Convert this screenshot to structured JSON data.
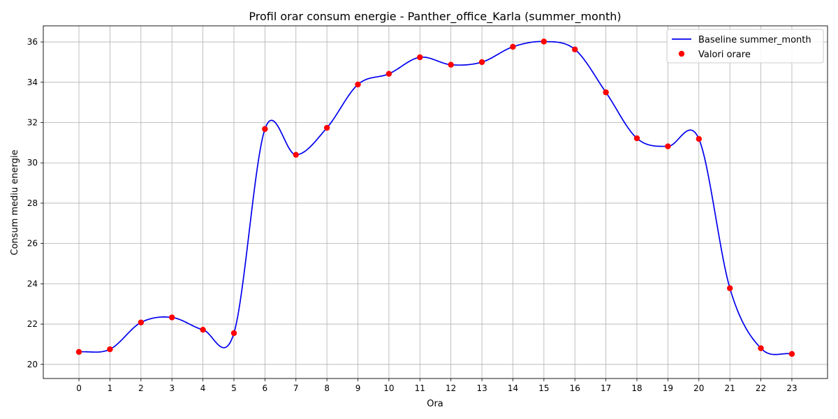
{
  "chart_data": {
    "type": "line",
    "title": "Profil orar consum energie - Panther_office_Karla (summer_month)",
    "xlabel": "Ora",
    "ylabel": "Consum mediu energie",
    "x": [
      0,
      1,
      2,
      3,
      4,
      5,
      6,
      7,
      8,
      9,
      10,
      11,
      12,
      13,
      14,
      15,
      16,
      17,
      18,
      19,
      20,
      21,
      22,
      23
    ],
    "x_ticks": [
      "0",
      "1",
      "2",
      "3",
      "4",
      "5",
      "6",
      "7",
      "8",
      "9",
      "10",
      "11",
      "12",
      "13",
      "14",
      "15",
      "16",
      "17",
      "18",
      "19",
      "20",
      "21",
      "22",
      "23"
    ],
    "xlim": [
      -1.15,
      24.15
    ],
    "ylim": [
      19.3,
      36.8
    ],
    "y_ticks": [
      20,
      22,
      24,
      26,
      28,
      30,
      32,
      34,
      36
    ],
    "y_tick_labels": [
      "20",
      "22",
      "24",
      "26",
      "28",
      "30",
      "32",
      "34",
      "36"
    ],
    "grid": true,
    "legend_position": "top-right",
    "series": [
      {
        "name": "Baseline summer_month",
        "kind": "smooth-line",
        "color": "#0000ee",
        "values": [
          20.62,
          20.75,
          22.08,
          22.33,
          21.72,
          21.55,
          31.68,
          30.4,
          31.74,
          33.89,
          34.42,
          35.24,
          34.87,
          35.0,
          35.76,
          36.02,
          35.63,
          33.5,
          31.22,
          30.82,
          31.19,
          23.78,
          20.8,
          20.52
        ]
      },
      {
        "name": "Valori orare",
        "kind": "scatter",
        "color": "#ff0000",
        "values": [
          20.62,
          20.75,
          22.08,
          22.33,
          21.72,
          21.55,
          31.68,
          30.4,
          31.74,
          33.89,
          34.42,
          35.24,
          34.87,
          35.0,
          35.76,
          36.02,
          35.63,
          33.5,
          31.22,
          30.82,
          31.19,
          23.78,
          20.8,
          20.52
        ]
      }
    ]
  }
}
